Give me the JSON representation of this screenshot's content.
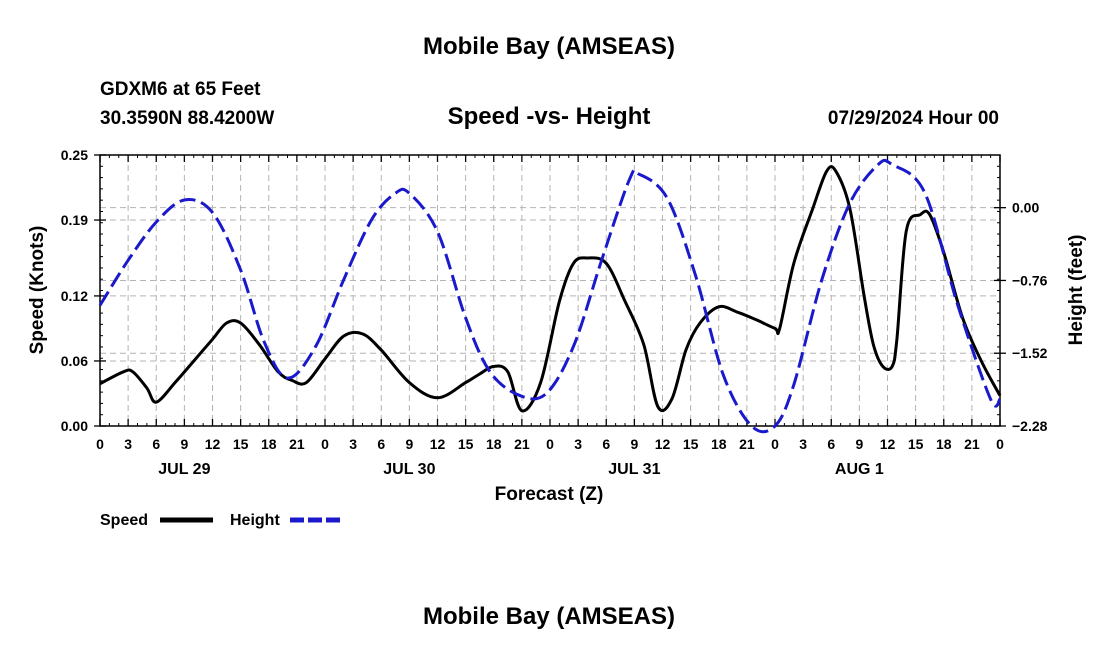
{
  "chart_data": {
    "type": "line",
    "title": "Mobile Bay (AMSEAS)",
    "footer_title": "Mobile Bay (AMSEAS)",
    "subtitle": "Speed -vs- Height",
    "station": "GDXM6 at 65 Feet",
    "location": "30.3590N  88.4200W",
    "run": "07/29/2024 Hour 00",
    "xlabel": "Forecast (Z)",
    "ylabel": "Speed (Knots)",
    "y2label": "Height (feet)",
    "x_unit": "forecast hour",
    "xlim": [
      0,
      96
    ],
    "ylim": [
      0,
      0.25
    ],
    "y2lim": [
      -2.28,
      0.55
    ],
    "x_tick_step": 3,
    "x_tick_labels": [
      "0",
      "3",
      "6",
      "9",
      "12",
      "15",
      "18",
      "21",
      "0",
      "3",
      "6",
      "9",
      "12",
      "15",
      "18",
      "21",
      "0",
      "3",
      "6",
      "9",
      "12",
      "15",
      "18",
      "21",
      "0",
      "3",
      "6",
      "9",
      "12",
      "15",
      "18",
      "21",
      "0"
    ],
    "y_ticks": [
      0.0,
      0.06,
      0.12,
      0.19,
      0.25
    ],
    "y_tick_labels": [
      "0.00",
      "0.06",
      "0.12",
      "0.19",
      "0.25"
    ],
    "y2_ticks": [
      0.0,
      -0.76,
      -1.52,
      -2.28
    ],
    "y2_tick_labels": [
      "0.00",
      "−0.76",
      "−1.52",
      "−2.28"
    ],
    "date_labels": [
      {
        "label": "JUL 29",
        "hour": 9
      },
      {
        "label": "JUL 30",
        "hour": 33
      },
      {
        "label": "JUL 31",
        "hour": 57
      },
      {
        "label": "AUG 1",
        "hour": 81
      }
    ],
    "grid": true,
    "legend_position": "bottom-left",
    "series": [
      {
        "name": "Speed",
        "axis": "left",
        "style": "solid",
        "color": "#000000",
        "x": [
          0,
          2.5,
          3.5,
          5,
          6,
          8,
          10,
          12,
          13.5,
          15,
          17,
          19,
          20.5,
          22,
          24,
          26,
          28,
          30,
          33,
          36,
          39,
          40.5,
          42,
          43.5,
          45,
          47,
          49,
          50.5,
          52,
          54,
          56,
          58,
          59.5,
          61,
          62.5,
          64,
          66,
          68,
          70,
          72,
          72.5,
          74,
          76,
          77.5,
          78.5,
          80,
          81.5,
          82.5,
          83.5,
          84.5,
          85,
          86,
          87.5,
          88.5,
          90,
          92,
          94,
          96
        ],
        "values": [
          0.039,
          0.05,
          0.05,
          0.035,
          0.022,
          0.04,
          0.06,
          0.08,
          0.095,
          0.095,
          0.075,
          0.05,
          0.042,
          0.04,
          0.062,
          0.083,
          0.085,
          0.07,
          0.04,
          0.026,
          0.04,
          0.048,
          0.055,
          0.05,
          0.014,
          0.04,
          0.115,
          0.15,
          0.155,
          0.15,
          0.115,
          0.075,
          0.018,
          0.025,
          0.07,
          0.095,
          0.11,
          0.105,
          0.098,
          0.09,
          0.09,
          0.15,
          0.2,
          0.235,
          0.235,
          0.2,
          0.12,
          0.075,
          0.055,
          0.055,
          0.08,
          0.18,
          0.195,
          0.195,
          0.16,
          0.1,
          0.06,
          0.028
        ]
      },
      {
        "name": "Height",
        "axis": "right",
        "style": "dashed",
        "color": "#1a1acc",
        "x": [
          0,
          3,
          6,
          9,
          12,
          15,
          17.5,
          20,
          23,
          26,
          29,
          31.5,
          33,
          36,
          39,
          41.5,
          44.5,
          47.5,
          50.5,
          53.5,
          56.5,
          57.5,
          60.5,
          63.5,
          66.5,
          69.5,
          72,
          74,
          77,
          80,
          83,
          84.5,
          88,
          91.5,
          95,
          96
        ],
        "values": [
          -1.02,
          -0.55,
          -0.15,
          0.08,
          -0.05,
          -0.65,
          -1.4,
          -1.78,
          -1.45,
          -0.75,
          -0.12,
          0.15,
          0.15,
          -0.25,
          -1.15,
          -1.7,
          -1.95,
          -1.95,
          -1.45,
          -0.55,
          0.3,
          0.35,
          0.1,
          -0.7,
          -1.75,
          -2.28,
          -2.28,
          -1.85,
          -0.75,
          0.05,
          0.45,
          0.45,
          0.15,
          -1.02,
          -2.0,
          -2.0
        ]
      }
    ]
  }
}
